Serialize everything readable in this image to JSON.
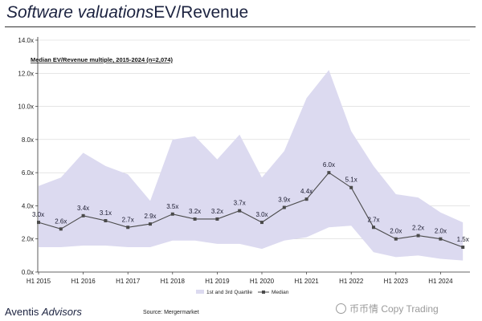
{
  "header": {
    "title_italic": "Software valuations",
    "title_regular": "EV/Revenue"
  },
  "footer": {
    "brand_regular": "Aventis ",
    "brand_italic": "Advisors",
    "source": "Source: Mergermarket",
    "watermark": "币币情 Copy Trading"
  },
  "chart_data": {
    "type": "line",
    "title": "Median EV/Revenue multiple, 2015-2024 (n=2,074)",
    "xlabel": "",
    "ylabel": "",
    "ylim": [
      0,
      14
    ],
    "yticks": [
      "0.0x",
      "2.0x",
      "4.0x",
      "6.0x",
      "8.0x",
      "10.0x",
      "12.0x",
      "14.0x"
    ],
    "xtick_labels": [
      "H1 2015",
      "H1 2016",
      "H1 2017",
      "H1 2018",
      "H1 2019",
      "H1 2020",
      "H1 2021",
      "H1 2022",
      "H1 2023",
      "H1 2024"
    ],
    "x": [
      "H1 2015",
      "H2 2015",
      "H1 2016",
      "H2 2016",
      "H1 2017",
      "H2 2017",
      "H1 2018",
      "H2 2018",
      "H1 2019",
      "H2 2019",
      "H1 2020",
      "H2 2020",
      "H1 2021",
      "H2 2021",
      "H1 2022",
      "H2 2022",
      "H1 2023",
      "H2 2023",
      "H1 2024",
      "H2 2024"
    ],
    "series": [
      {
        "name": "Median",
        "values": [
          3.0,
          2.6,
          3.4,
          3.1,
          2.7,
          2.9,
          3.5,
          3.2,
          3.2,
          3.7,
          3.0,
          3.9,
          4.4,
          6.0,
          5.1,
          2.7,
          2.0,
          2.2,
          2.0,
          1.5
        ],
        "labels": [
          "3.0x",
          "2.6x",
          "3.4x",
          "3.1x",
          "2.7x",
          "2.9x",
          "3.5x",
          "3.2x",
          "3.2x",
          "3.7x",
          "3.0x",
          "3.9x",
          "4.4x",
          "6.0x",
          "5.1x",
          "2.7x",
          "2.0x",
          "2.2x",
          "2.0x",
          "1.5x"
        ],
        "color": "#4a4a4a"
      },
      {
        "name": "1st and 3rd Quartile",
        "lower": [
          1.5,
          1.5,
          1.6,
          1.6,
          1.5,
          1.5,
          1.9,
          1.9,
          1.7,
          1.7,
          1.4,
          1.9,
          2.1,
          2.7,
          2.8,
          1.2,
          0.9,
          1.0,
          0.8,
          0.7
        ],
        "upper": [
          5.2,
          5.7,
          7.2,
          6.4,
          5.9,
          4.3,
          8.0,
          8.2,
          6.8,
          8.3,
          5.7,
          7.3,
          10.5,
          12.2,
          8.5,
          6.4,
          4.7,
          4.5,
          3.6,
          3.0
        ],
        "color": "#dcdaf0"
      }
    ],
    "grid": true,
    "legend": "bottom-center"
  }
}
